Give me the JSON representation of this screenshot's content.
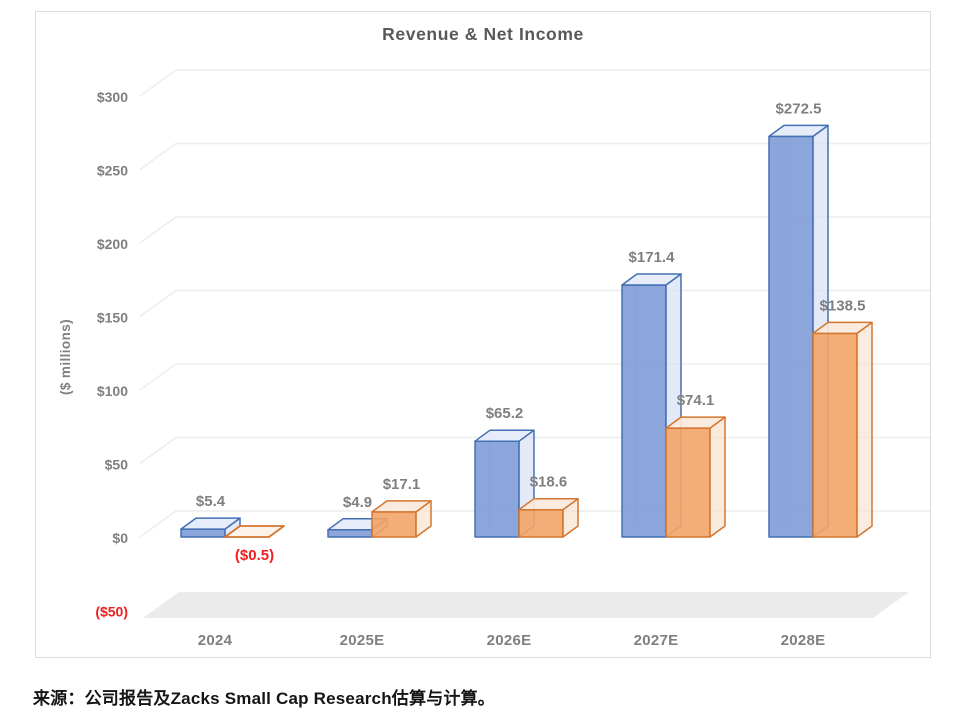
{
  "chart_data": {
    "type": "bar",
    "style": "3d-column",
    "title": "Revenue & Net Income",
    "ylabel": "($ millions)",
    "xlabel": "",
    "categories": [
      "2024",
      "2025E",
      "2026E",
      "2027E",
      "2028E"
    ],
    "series": [
      {
        "name": "Revenue",
        "color_key": "revenue",
        "values": [
          5.4,
          4.9,
          65.2,
          171.4,
          272.5
        ],
        "labels": [
          "$5.4",
          "$4.9",
          "$65.2",
          "$171.4",
          "$272.5"
        ]
      },
      {
        "name": "Net Income",
        "color_key": "net_income",
        "values": [
          -0.5,
          17.1,
          18.6,
          74.1,
          138.5
        ],
        "labels": [
          "($0.5)",
          "$17.1",
          "$18.6",
          "$74.1",
          "$138.5"
        ]
      }
    ],
    "y_ticks": [
      {
        "label": "$300",
        "value": 300,
        "negative": false
      },
      {
        "label": "$250",
        "value": 250,
        "negative": false
      },
      {
        "label": "$200",
        "value": 200,
        "negative": false
      },
      {
        "label": "$150",
        "value": 150,
        "negative": false
      },
      {
        "label": "$100",
        "value": 100,
        "negative": false
      },
      {
        "label": "$50",
        "value": 50,
        "negative": false
      },
      {
        "label": "$0",
        "value": 0,
        "negative": false
      },
      {
        "label": "($50)",
        "value": -50,
        "negative": true
      }
    ],
    "ylim": [
      -50,
      300
    ],
    "grid": true,
    "legend": "none",
    "colors": {
      "revenue_front": "#809CD8",
      "revenue_stroke": "#4470B4",
      "revenue_top": "#E4EAF8",
      "revenue_side": "#D9E1F4",
      "net_income_front": "#F3A467",
      "net_income_stroke": "#D4762E",
      "net_income_top": "#FAE9DB",
      "net_income_side": "#F8E3D2",
      "label_gray": "#7F7F7F",
      "negative_red": "#EE2020",
      "grid": "#EFECEC",
      "floor": "#EBEBEB"
    }
  },
  "footer": {
    "source_note": "来源：公司报告及Zacks Small Cap Research估算与计算。"
  }
}
